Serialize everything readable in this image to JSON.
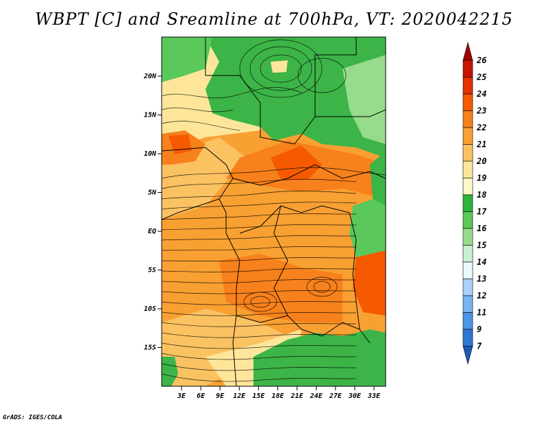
{
  "title": "WBPT [C] and Sreamline at 700hPa, VT: 2020042215",
  "footer": "GrADS: IGES/COLA",
  "map": {
    "lat_ticks": [
      "20N",
      "15N",
      "10N",
      "5N",
      "EQ",
      "5S",
      "10S",
      "15S"
    ],
    "lon_ticks": [
      "3E",
      "6E",
      "9E",
      "12E",
      "15E",
      "18E",
      "21E",
      "24E",
      "27E",
      "30E",
      "33E"
    ]
  },
  "colorbar": {
    "labels": [
      "26",
      "25",
      "24",
      "23",
      "22",
      "21",
      "20",
      "19",
      "18",
      "17",
      "16",
      "15",
      "14",
      "13",
      "12",
      "11",
      "9",
      "7"
    ],
    "colors": [
      "#a50000",
      "#c81400",
      "#e63200",
      "#f55a00",
      "#f7811c",
      "#f9a032",
      "#fbc262",
      "#fde69a",
      "#fff8c8",
      "#2fb43c",
      "#5ac85a",
      "#96dc8c",
      "#c8f0d2",
      "#ebfaff",
      "#aad2fa",
      "#78b4f0",
      "#4b96e6",
      "#2d78d2",
      "#1e5ab4"
    ]
  },
  "colors": {
    "green_dark": "#3cb447",
    "green_mid": "#5ac85a",
    "green_light": "#96dc8c",
    "yellow": "#fde69a",
    "orange_light": "#fbc262",
    "orange": "#f9a032",
    "orange_dark": "#f7811c",
    "red_orange": "#f55a00"
  }
}
